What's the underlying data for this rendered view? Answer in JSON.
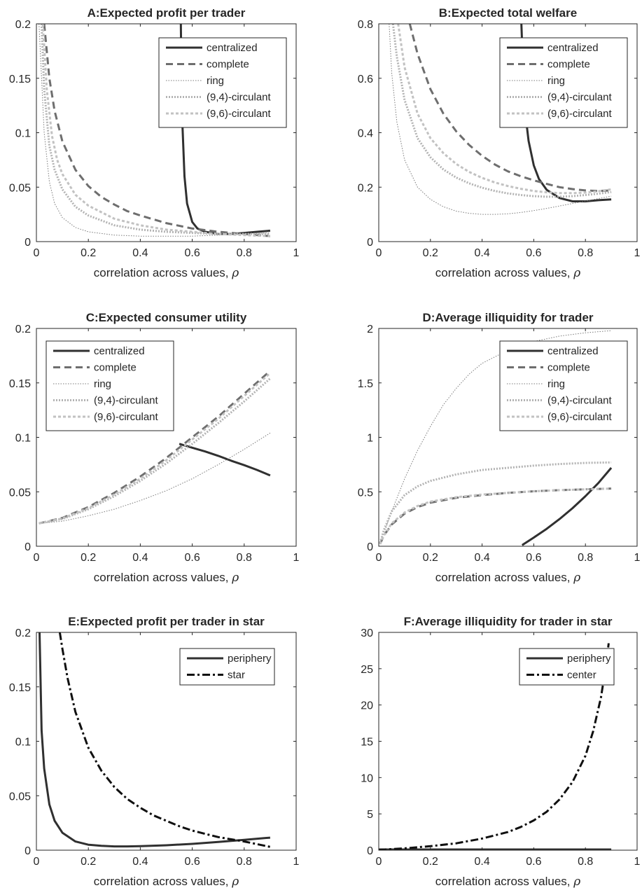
{
  "figure": {
    "xlabel_text": "correlation across values, ",
    "xlabel_symbol": "ρ"
  },
  "chart_data": [
    {
      "panel": "A",
      "type": "line",
      "title": "A:Expected profit per trader",
      "xlabel": "correlation across values, ρ",
      "ylabel": "",
      "xlim": [
        0,
        1
      ],
      "ylim": [
        0,
        0.2
      ],
      "xticks": [
        "0",
        "0.2",
        "0.4",
        "0.6",
        "0.8",
        "1"
      ],
      "yticks": [
        "0",
        "0.05",
        "0.1",
        "0.15",
        "0.2"
      ],
      "legend_position": "top-right",
      "series": [
        {
          "name": "centralized",
          "style": "solid-thick",
          "x": [
            0.556,
            0.56,
            0.57,
            0.58,
            0.6,
            0.62,
            0.65,
            0.7,
            0.75,
            0.8,
            0.85,
            0.9
          ],
          "y": [
            0.2,
            0.12,
            0.06,
            0.035,
            0.018,
            0.012,
            0.009,
            0.007,
            0.007,
            0.008,
            0.009,
            0.01
          ]
        },
        {
          "name": "complete",
          "style": "dashed-thick",
          "x": [
            0.03,
            0.05,
            0.07,
            0.1,
            0.15,
            0.2,
            0.25,
            0.3,
            0.35,
            0.4,
            0.5,
            0.6,
            0.7,
            0.8,
            0.9
          ],
          "y": [
            0.2,
            0.15,
            0.12,
            0.092,
            0.066,
            0.051,
            0.041,
            0.034,
            0.028,
            0.024,
            0.017,
            0.012,
            0.009,
            0.007,
            0.005
          ]
        },
        {
          "name": "ring",
          "style": "dotted-thin",
          "x": [
            0.01,
            0.02,
            0.03,
            0.05,
            0.07,
            0.1,
            0.15,
            0.2,
            0.3,
            0.4,
            0.5,
            0.6,
            0.7,
            0.8,
            0.9
          ],
          "y": [
            0.2,
            0.15,
            0.1,
            0.055,
            0.035,
            0.022,
            0.013,
            0.009,
            0.006,
            0.005,
            0.005,
            0.005,
            0.006,
            0.007,
            0.008
          ]
        },
        {
          "name": "(9,4)-circulant",
          "style": "dotted-medium",
          "x": [
            0.02,
            0.03,
            0.05,
            0.07,
            0.1,
            0.15,
            0.2,
            0.3,
            0.4,
            0.5,
            0.6,
            0.7,
            0.8,
            0.9
          ],
          "y": [
            0.2,
            0.14,
            0.088,
            0.066,
            0.048,
            0.032,
            0.024,
            0.015,
            0.011,
            0.009,
            0.008,
            0.007,
            0.007,
            0.007
          ]
        },
        {
          "name": "(9,6)-circulant",
          "style": "dashed-medium",
          "x": [
            0.025,
            0.04,
            0.06,
            0.08,
            0.1,
            0.15,
            0.2,
            0.3,
            0.4,
            0.5,
            0.6,
            0.7,
            0.8,
            0.9
          ],
          "y": [
            0.2,
            0.14,
            0.097,
            0.075,
            0.062,
            0.043,
            0.033,
            0.021,
            0.015,
            0.011,
            0.009,
            0.007,
            0.006,
            0.005
          ]
        }
      ]
    },
    {
      "panel": "B",
      "type": "line",
      "title": "B:Expected total welfare",
      "xlabel": "correlation across values, ρ",
      "ylabel": "",
      "xlim": [
        0,
        1
      ],
      "ylim": [
        0,
        0.8
      ],
      "xticks": [
        "0",
        "0.2",
        "0.4",
        "0.6",
        "0.8",
        "1"
      ],
      "yticks": [
        "0",
        "0.2",
        "0.4",
        "0.6",
        "0.8"
      ],
      "legend_position": "top-right",
      "series": [
        {
          "name": "centralized",
          "style": "solid-thick",
          "x": [
            0.552,
            0.56,
            0.57,
            0.58,
            0.6,
            0.62,
            0.65,
            0.7,
            0.75,
            0.8,
            0.85,
            0.9
          ],
          "y": [
            0.8,
            0.6,
            0.45,
            0.37,
            0.28,
            0.23,
            0.19,
            0.16,
            0.148,
            0.148,
            0.152,
            0.155
          ]
        },
        {
          "name": "complete",
          "style": "dashed-thick",
          "x": [
            0.12,
            0.15,
            0.2,
            0.25,
            0.3,
            0.35,
            0.4,
            0.45,
            0.5,
            0.55,
            0.6,
            0.65,
            0.7,
            0.75,
            0.8,
            0.85,
            0.9
          ],
          "y": [
            0.8,
            0.69,
            0.56,
            0.47,
            0.405,
            0.355,
            0.315,
            0.283,
            0.258,
            0.24,
            0.225,
            0.212,
            0.2,
            0.193,
            0.188,
            0.186,
            0.188
          ]
        },
        {
          "name": "ring",
          "style": "dotted-thin",
          "x": [
            0.04,
            0.05,
            0.07,
            0.1,
            0.15,
            0.2,
            0.25,
            0.3,
            0.35,
            0.4,
            0.45,
            0.5,
            0.55,
            0.6,
            0.65,
            0.7,
            0.75,
            0.8,
            0.85,
            0.9
          ],
          "y": [
            0.8,
            0.62,
            0.44,
            0.3,
            0.2,
            0.155,
            0.128,
            0.112,
            0.104,
            0.1,
            0.1,
            0.102,
            0.107,
            0.114,
            0.122,
            0.131,
            0.14,
            0.149,
            0.158,
            0.167
          ]
        },
        {
          "name": "(9,4)-circulant",
          "style": "dotted-medium",
          "x": [
            0.055,
            0.07,
            0.1,
            0.15,
            0.2,
            0.25,
            0.3,
            0.35,
            0.4,
            0.45,
            0.5,
            0.55,
            0.6,
            0.65,
            0.7,
            0.75,
            0.8,
            0.85,
            0.9
          ],
          "y": [
            0.8,
            0.68,
            0.52,
            0.38,
            0.31,
            0.265,
            0.235,
            0.214,
            0.198,
            0.186,
            0.177,
            0.171,
            0.167,
            0.165,
            0.165,
            0.167,
            0.171,
            0.176,
            0.182
          ]
        },
        {
          "name": "(9,6)-circulant",
          "style": "dashed-medium",
          "x": [
            0.075,
            0.1,
            0.15,
            0.2,
            0.25,
            0.3,
            0.35,
            0.4,
            0.45,
            0.5,
            0.55,
            0.6,
            0.65,
            0.7,
            0.75,
            0.8,
            0.85,
            0.9
          ],
          "y": [
            0.8,
            0.64,
            0.47,
            0.38,
            0.325,
            0.285,
            0.256,
            0.234,
            0.217,
            0.204,
            0.194,
            0.186,
            0.181,
            0.178,
            0.178,
            0.18,
            0.185,
            0.192
          ]
        }
      ]
    },
    {
      "panel": "C",
      "type": "line",
      "title": "C:Expected consumer utility",
      "xlabel": "correlation across values, ρ",
      "ylabel": "",
      "xlim": [
        0,
        1
      ],
      "ylim": [
        0,
        0.2
      ],
      "xticks": [
        "0",
        "0.2",
        "0.4",
        "0.6",
        "0.8",
        "1"
      ],
      "yticks": [
        "0",
        "0.05",
        "0.1",
        "0.15",
        "0.2"
      ],
      "legend_position": "top-left",
      "series": [
        {
          "name": "centralized",
          "style": "solid-thick",
          "x": [
            0.55,
            0.6,
            0.65,
            0.7,
            0.75,
            0.8,
            0.85,
            0.9
          ],
          "y": [
            0.094,
            0.0905,
            0.087,
            0.083,
            0.0785,
            0.0745,
            0.07,
            0.065
          ]
        },
        {
          "name": "complete",
          "style": "dashed-thick",
          "x": [
            0.01,
            0.1,
            0.2,
            0.3,
            0.4,
            0.5,
            0.6,
            0.7,
            0.8,
            0.9
          ],
          "y": [
            0.021,
            0.026,
            0.036,
            0.049,
            0.064,
            0.081,
            0.1,
            0.119,
            0.14,
            0.161
          ]
        },
        {
          "name": "ring",
          "style": "dotted-thin",
          "x": [
            0.01,
            0.1,
            0.2,
            0.3,
            0.4,
            0.5,
            0.6,
            0.7,
            0.8,
            0.9
          ],
          "y": [
            0.021,
            0.023,
            0.028,
            0.034,
            0.042,
            0.051,
            0.062,
            0.075,
            0.089,
            0.104
          ]
        },
        {
          "name": "(9,4)-circulant",
          "style": "dotted-medium",
          "x": [
            0.01,
            0.1,
            0.2,
            0.3,
            0.4,
            0.5,
            0.6,
            0.7,
            0.8,
            0.9
          ],
          "y": [
            0.021,
            0.025,
            0.034,
            0.046,
            0.06,
            0.076,
            0.094,
            0.113,
            0.133,
            0.154
          ]
        },
        {
          "name": "(9,6)-circulant",
          "style": "dashed-medium",
          "x": [
            0.01,
            0.1,
            0.2,
            0.3,
            0.4,
            0.5,
            0.6,
            0.7,
            0.8,
            0.9
          ],
          "y": [
            0.021,
            0.0255,
            0.035,
            0.0475,
            0.062,
            0.079,
            0.098,
            0.117,
            0.138,
            0.159
          ]
        }
      ]
    },
    {
      "panel": "D",
      "type": "line",
      "title": "D:Average illiquidity for trader",
      "xlabel": "correlation across values, ρ",
      "ylabel": "",
      "xlim": [
        0,
        1
      ],
      "ylim": [
        0,
        2
      ],
      "xticks": [
        "0",
        "0.2",
        "0.4",
        "0.6",
        "0.8",
        "1"
      ],
      "yticks": [
        "0",
        "0.5",
        "1",
        "1.5",
        "2"
      ],
      "legend_position": "top-right",
      "series": [
        {
          "name": "centralized",
          "style": "solid-thick",
          "x": [
            0.555,
            0.6,
            0.65,
            0.7,
            0.75,
            0.8,
            0.85,
            0.9
          ],
          "y": [
            0.01,
            0.08,
            0.16,
            0.25,
            0.35,
            0.46,
            0.58,
            0.72
          ]
        },
        {
          "name": "complete",
          "style": "dashed-thick",
          "x": [
            0.005,
            0.02,
            0.05,
            0.1,
            0.15,
            0.2,
            0.3,
            0.4,
            0.5,
            0.6,
            0.7,
            0.8,
            0.9
          ],
          "y": [
            0.02,
            0.1,
            0.2,
            0.3,
            0.36,
            0.4,
            0.445,
            0.47,
            0.49,
            0.505,
            0.515,
            0.523,
            0.53
          ]
        },
        {
          "name": "ring",
          "style": "dotted-thin",
          "x": [
            0.005,
            0.02,
            0.05,
            0.1,
            0.15,
            0.2,
            0.25,
            0.3,
            0.35,
            0.4,
            0.5,
            0.6,
            0.7,
            0.8,
            0.9
          ],
          "y": [
            0.02,
            0.12,
            0.32,
            0.62,
            0.88,
            1.1,
            1.3,
            1.45,
            1.58,
            1.68,
            1.8,
            1.88,
            1.93,
            1.96,
            1.98
          ]
        },
        {
          "name": "(9,4)-circulant",
          "style": "dotted-medium",
          "x": [
            0.005,
            0.02,
            0.05,
            0.1,
            0.15,
            0.2,
            0.3,
            0.4,
            0.5,
            0.6,
            0.7,
            0.8,
            0.9
          ],
          "y": [
            0.03,
            0.15,
            0.32,
            0.47,
            0.55,
            0.6,
            0.66,
            0.7,
            0.72,
            0.74,
            0.755,
            0.765,
            0.77
          ]
        },
        {
          "name": "(9,6)-circulant",
          "style": "dashed-medium",
          "x": [
            0.005,
            0.02,
            0.05,
            0.1,
            0.15,
            0.2,
            0.3,
            0.4,
            0.5,
            0.6,
            0.7,
            0.8,
            0.9
          ],
          "y": [
            0.02,
            0.1,
            0.21,
            0.31,
            0.37,
            0.41,
            0.45,
            0.475,
            0.49,
            0.505,
            0.515,
            0.523,
            0.53
          ]
        }
      ]
    },
    {
      "panel": "E",
      "type": "line",
      "title": "E:Expected profit per trader in star",
      "xlabel": "correlation across values, ρ",
      "ylabel": "",
      "xlim": [
        0,
        1
      ],
      "ylim": [
        0,
        0.2
      ],
      "xticks": [
        "0",
        "0.2",
        "0.4",
        "0.6",
        "0.8",
        "1"
      ],
      "yticks": [
        "0",
        "0.05",
        "0.1",
        "0.15",
        "0.2"
      ],
      "legend_position": "top-right",
      "series": [
        {
          "name": "periphery",
          "style": "solid-thick",
          "x": [
            0.012,
            0.02,
            0.03,
            0.05,
            0.07,
            0.1,
            0.15,
            0.2,
            0.25,
            0.3,
            0.35,
            0.4,
            0.5,
            0.6,
            0.7,
            0.8,
            0.9
          ],
          "y": [
            0.2,
            0.11,
            0.075,
            0.042,
            0.027,
            0.016,
            0.008,
            0.005,
            0.004,
            0.0035,
            0.0035,
            0.0037,
            0.0045,
            0.0058,
            0.0075,
            0.0095,
            0.0115
          ]
        },
        {
          "name": "star",
          "style": "dashdot-thick",
          "x": [
            0.09,
            0.1,
            0.12,
            0.15,
            0.2,
            0.25,
            0.3,
            0.35,
            0.4,
            0.45,
            0.5,
            0.55,
            0.6,
            0.65,
            0.7,
            0.75,
            0.8,
            0.85,
            0.9
          ],
          "y": [
            0.2,
            0.185,
            0.158,
            0.127,
            0.094,
            0.073,
            0.058,
            0.047,
            0.039,
            0.032,
            0.027,
            0.022,
            0.018,
            0.015,
            0.012,
            0.01,
            0.008,
            0.0055,
            0.003
          ]
        }
      ]
    },
    {
      "panel": "F",
      "type": "line",
      "title": "F:Average illiquidity for trader in star",
      "xlabel": "correlation across values, ρ",
      "ylabel": "",
      "xlim": [
        0,
        1
      ],
      "ylim": [
        0,
        30
      ],
      "xticks": [
        "0",
        "0.2",
        "0.4",
        "0.6",
        "0.8",
        "1"
      ],
      "yticks": [
        "0",
        "5",
        "10",
        "15",
        "20",
        "25",
        "30"
      ],
      "legend_position": "top-right",
      "series": [
        {
          "name": "periphery",
          "style": "solid-thick",
          "x": [
            0,
            0.2,
            0.4,
            0.6,
            0.8,
            0.9
          ],
          "y": [
            0.1,
            0.1,
            0.1,
            0.1,
            0.1,
            0.1
          ]
        },
        {
          "name": "center",
          "style": "dashdot-thick",
          "x": [
            0,
            0.1,
            0.2,
            0.3,
            0.4,
            0.5,
            0.55,
            0.6,
            0.65,
            0.7,
            0.75,
            0.8,
            0.83,
            0.86,
            0.88,
            0.89
          ],
          "y": [
            0.05,
            0.25,
            0.55,
            0.95,
            1.6,
            2.5,
            3.2,
            4.1,
            5.3,
            7,
            9.4,
            13,
            16.4,
            21,
            25.5,
            28.5
          ]
        }
      ]
    }
  ]
}
